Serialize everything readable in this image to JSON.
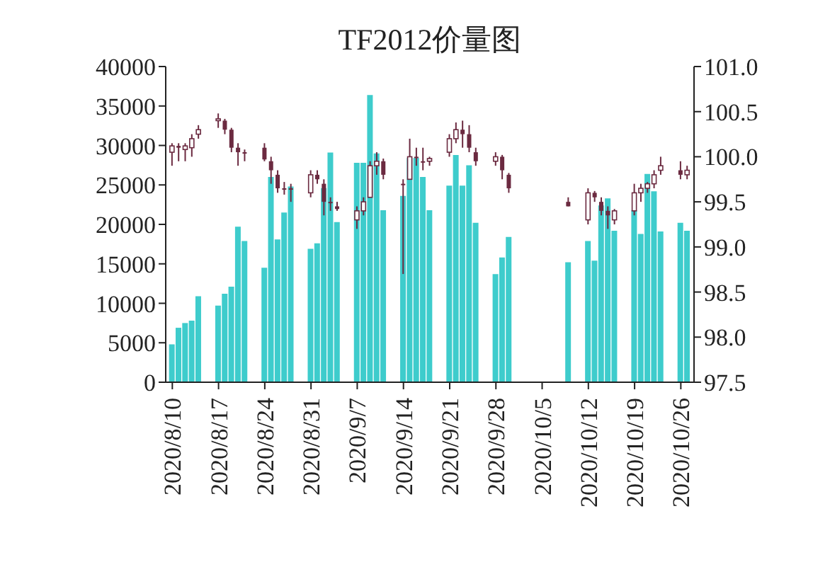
{
  "chart_data": {
    "type": "bar",
    "title": "TF2012价量图",
    "x": [
      "2020-08-10",
      "2020-08-11",
      "2020-08-12",
      "2020-08-13",
      "2020-08-14",
      "2020-08-17",
      "2020-08-18",
      "2020-08-19",
      "2020-08-20",
      "2020-08-21",
      "2020-08-24",
      "2020-08-25",
      "2020-08-26",
      "2020-08-27",
      "2020-08-28",
      "2020-08-31",
      "2020-09-01",
      "2020-09-02",
      "2020-09-03",
      "2020-09-04",
      "2020-09-07",
      "2020-09-08",
      "2020-09-09",
      "2020-09-10",
      "2020-09-11",
      "2020-09-14",
      "2020-09-15",
      "2020-09-16",
      "2020-09-17",
      "2020-09-18",
      "2020-09-21",
      "2020-09-22",
      "2020-09-23",
      "2020-09-24",
      "2020-09-25",
      "2020-09-28",
      "2020-09-29",
      "2020-09-30",
      "2020-10-09",
      "2020-10-12",
      "2020-10-13",
      "2020-10-14",
      "2020-10-15",
      "2020-10-16",
      "2020-10-19",
      "2020-10-20",
      "2020-10-21",
      "2020-10-22",
      "2020-10-23",
      "2020-10-26",
      "2020-10-27"
    ],
    "series": [
      {
        "type": "bar",
        "color": "#3ecccc",
        "values": [
          4800,
          6900,
          7500,
          7800,
          10900,
          9700,
          11200,
          12100,
          19700,
          17900,
          14500,
          26000,
          18100,
          21500,
          24800,
          16900,
          17600,
          24600,
          29100,
          20300,
          27800,
          27800,
          36400,
          29000,
          21800,
          23600,
          28400,
          28400,
          26000,
          21800,
          24900,
          28800,
          24900,
          27500,
          20200,
          13700,
          15800,
          18400,
          15200,
          17900,
          15400,
          22400,
          23300,
          19200,
          21800,
          18800,
          26400,
          24200,
          19100,
          20200,
          19200
        ]
      },
      {
        "type": "candlestick",
        "axis": "y2",
        "color": "#6b2a40",
        "ohlc": [
          [
            100.05,
            100.15,
            99.9,
            100.12
          ],
          [
            100.12,
            100.15,
            99.95,
            100.1
          ],
          [
            100.08,
            100.15,
            99.95,
            100.12
          ],
          [
            100.1,
            100.25,
            100.0,
            100.2
          ],
          [
            100.25,
            100.35,
            100.2,
            100.3
          ],
          [
            100.4,
            100.48,
            100.32,
            100.42
          ],
          [
            100.4,
            100.42,
            100.25,
            100.3
          ],
          [
            100.3,
            100.32,
            100.05,
            100.1
          ],
          [
            100.1,
            100.15,
            99.9,
            100.05
          ],
          [
            100.05,
            100.08,
            99.95,
            100.05
          ],
          [
            100.1,
            100.15,
            99.95,
            99.97
          ],
          [
            99.95,
            100.0,
            99.7,
            99.85
          ],
          [
            99.8,
            99.85,
            99.6,
            99.65
          ],
          [
            99.65,
            99.72,
            99.58,
            99.65
          ],
          [
            99.65,
            99.7,
            99.5,
            99.65
          ],
          [
            99.6,
            99.85,
            99.55,
            99.8
          ],
          [
            99.8,
            99.85,
            99.7,
            99.75
          ],
          [
            99.7,
            99.75,
            99.35,
            99.5
          ],
          [
            99.5,
            99.55,
            99.4,
            99.5
          ],
          [
            99.45,
            99.5,
            99.4,
            99.42
          ],
          [
            99.3,
            99.45,
            99.2,
            99.4
          ],
          [
            99.4,
            99.55,
            99.35,
            99.5
          ],
          [
            99.55,
            99.95,
            99.55,
            99.9
          ],
          [
            99.9,
            100.05,
            99.8,
            99.95
          ],
          [
            99.95,
            99.98,
            99.75,
            99.8
          ],
          [
            99.7,
            99.75,
            98.7,
            99.7
          ],
          [
            99.75,
            100.2,
            99.75,
            100.0
          ],
          [
            100.0,
            100.1,
            99.9,
            100.0
          ],
          [
            99.95,
            100.1,
            99.85,
            99.95
          ],
          [
            99.95,
            100.0,
            99.9,
            99.98
          ],
          [
            100.05,
            100.25,
            100.0,
            100.2
          ],
          [
            100.2,
            100.38,
            100.15,
            100.3
          ],
          [
            100.3,
            100.4,
            100.1,
            100.25
          ],
          [
            100.25,
            100.35,
            100.05,
            100.1
          ],
          [
            100.05,
            100.1,
            99.9,
            99.95
          ],
          [
            99.95,
            100.05,
            99.9,
            100.0
          ],
          [
            100.0,
            100.02,
            99.75,
            99.85
          ],
          [
            99.8,
            99.82,
            99.6,
            99.65
          ],
          [
            99.5,
            99.55,
            99.45,
            99.45
          ],
          [
            99.3,
            99.65,
            99.25,
            99.6
          ],
          [
            99.6,
            99.62,
            99.5,
            99.55
          ],
          [
            99.5,
            99.55,
            99.35,
            99.4
          ],
          [
            99.4,
            99.45,
            99.2,
            99.35
          ],
          [
            99.3,
            99.42,
            99.25,
            99.4
          ],
          [
            99.4,
            99.7,
            99.35,
            99.6
          ],
          [
            99.6,
            99.7,
            99.5,
            99.65
          ],
          [
            99.65,
            99.72,
            99.6,
            99.7
          ],
          [
            99.7,
            99.85,
            99.65,
            99.8
          ],
          [
            99.85,
            100.0,
            99.8,
            99.9
          ],
          [
            99.85,
            99.95,
            99.75,
            99.8
          ],
          [
            99.8,
            99.9,
            99.75,
            99.85
          ]
        ]
      }
    ],
    "xlim": [
      "2020-08-09T00:00",
      "2020-10-28T00:00"
    ],
    "xticks": [
      {
        "value": "2020-08-10",
        "label": "2020/8/10"
      },
      {
        "value": "2020-08-17",
        "label": "2020/8/17"
      },
      {
        "value": "2020-08-24",
        "label": "2020/8/24"
      },
      {
        "value": "2020-08-31",
        "label": "2020/8/31"
      },
      {
        "value": "2020-09-07",
        "label": "2020/9/7"
      },
      {
        "value": "2020-09-14",
        "label": "2020/9/14"
      },
      {
        "value": "2020-09-21",
        "label": "2020/9/21"
      },
      {
        "value": "2020-09-28",
        "label": "2020/9/28"
      },
      {
        "value": "2020-10-05",
        "label": "2020/10/5"
      },
      {
        "value": "2020-10-12",
        "label": "2020/10/12"
      },
      {
        "value": "2020-10-19",
        "label": "2020/10/19"
      },
      {
        "value": "2020-10-26",
        "label": "2020/10/26"
      }
    ],
    "ylim": [
      0,
      40000
    ],
    "yticks": [
      0,
      5000,
      10000,
      15000,
      20000,
      25000,
      30000,
      35000,
      40000
    ],
    "y2lim": [
      97.5,
      101
    ],
    "y2ticks": [
      97.5,
      {
        "value": 98,
        "label": "98.0"
      },
      98.5,
      {
        "value": 99,
        "label": "99.0"
      },
      99.5,
      {
        "value": 100,
        "label": "100.0"
      },
      100.5,
      {
        "value": 101,
        "label": "101.0"
      }
    ]
  }
}
